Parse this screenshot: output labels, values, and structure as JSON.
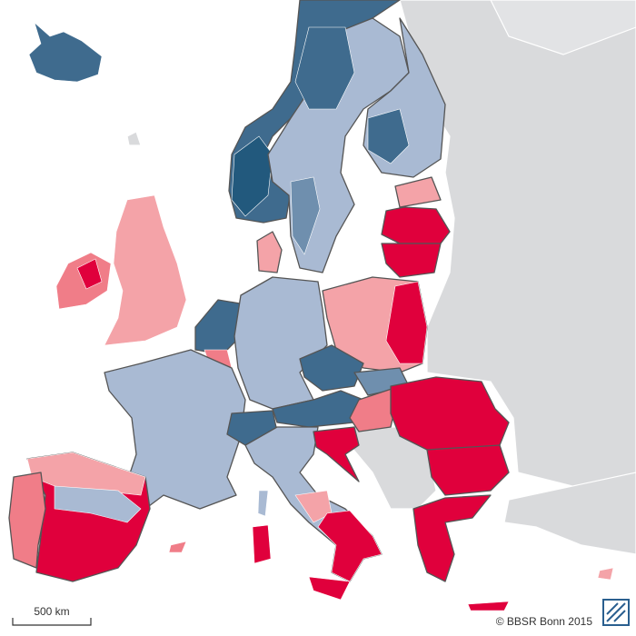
{
  "scale_bar": {
    "label": "500 km"
  },
  "credit": "© BBSR Bonn 2015"
}
